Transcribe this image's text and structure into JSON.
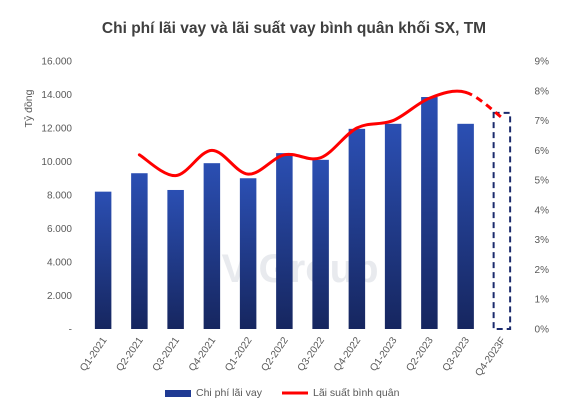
{
  "chart_data": {
    "type": "bar",
    "title": "Chi phí lãi vay và lãi suất vay bình quân khối SX, TM",
    "ylabel": "Tỷ đồng",
    "ylim": [
      0,
      16000
    ],
    "y2lim": [
      0,
      9
    ],
    "y_ticks": [
      "-",
      "2.000",
      "4.000",
      "6.000",
      "8.000",
      "10.000",
      "12.000",
      "14.000",
      "16.000"
    ],
    "y2_ticks": [
      "0%",
      "1%",
      "2%",
      "3%",
      "4%",
      "5%",
      "6%",
      "7%",
      "8%",
      "9%"
    ],
    "categories": [
      "Q1-2021",
      "Q2-2021",
      "Q3-2021",
      "Q4-2021",
      "Q1-2022",
      "Q2-2022",
      "Q3-2022",
      "Q4-2022",
      "Q1-2023",
      "Q2-2023",
      "Q3-2023",
      "Q4-2023F"
    ],
    "series": [
      {
        "name": "Chi phí lãi vay",
        "kind": "bar",
        "axis": "left",
        "color": "#1f3a93",
        "values": [
          8200,
          9300,
          8300,
          9900,
          9000,
          10500,
          10100,
          11950,
          12250,
          13850,
          12250,
          12900
        ],
        "forecast_index": 11
      },
      {
        "name": "Lãi suất bình quân",
        "kind": "line",
        "axis": "right",
        "color": "#ff0000",
        "values": [
          null,
          5.85,
          5.15,
          6.0,
          5.2,
          5.85,
          5.75,
          6.75,
          7.0,
          7.75,
          7.95,
          7.1
        ],
        "forecast_from_index": 10
      }
    ],
    "watermark": "ViGroup",
    "legend_position": "bottom"
  }
}
